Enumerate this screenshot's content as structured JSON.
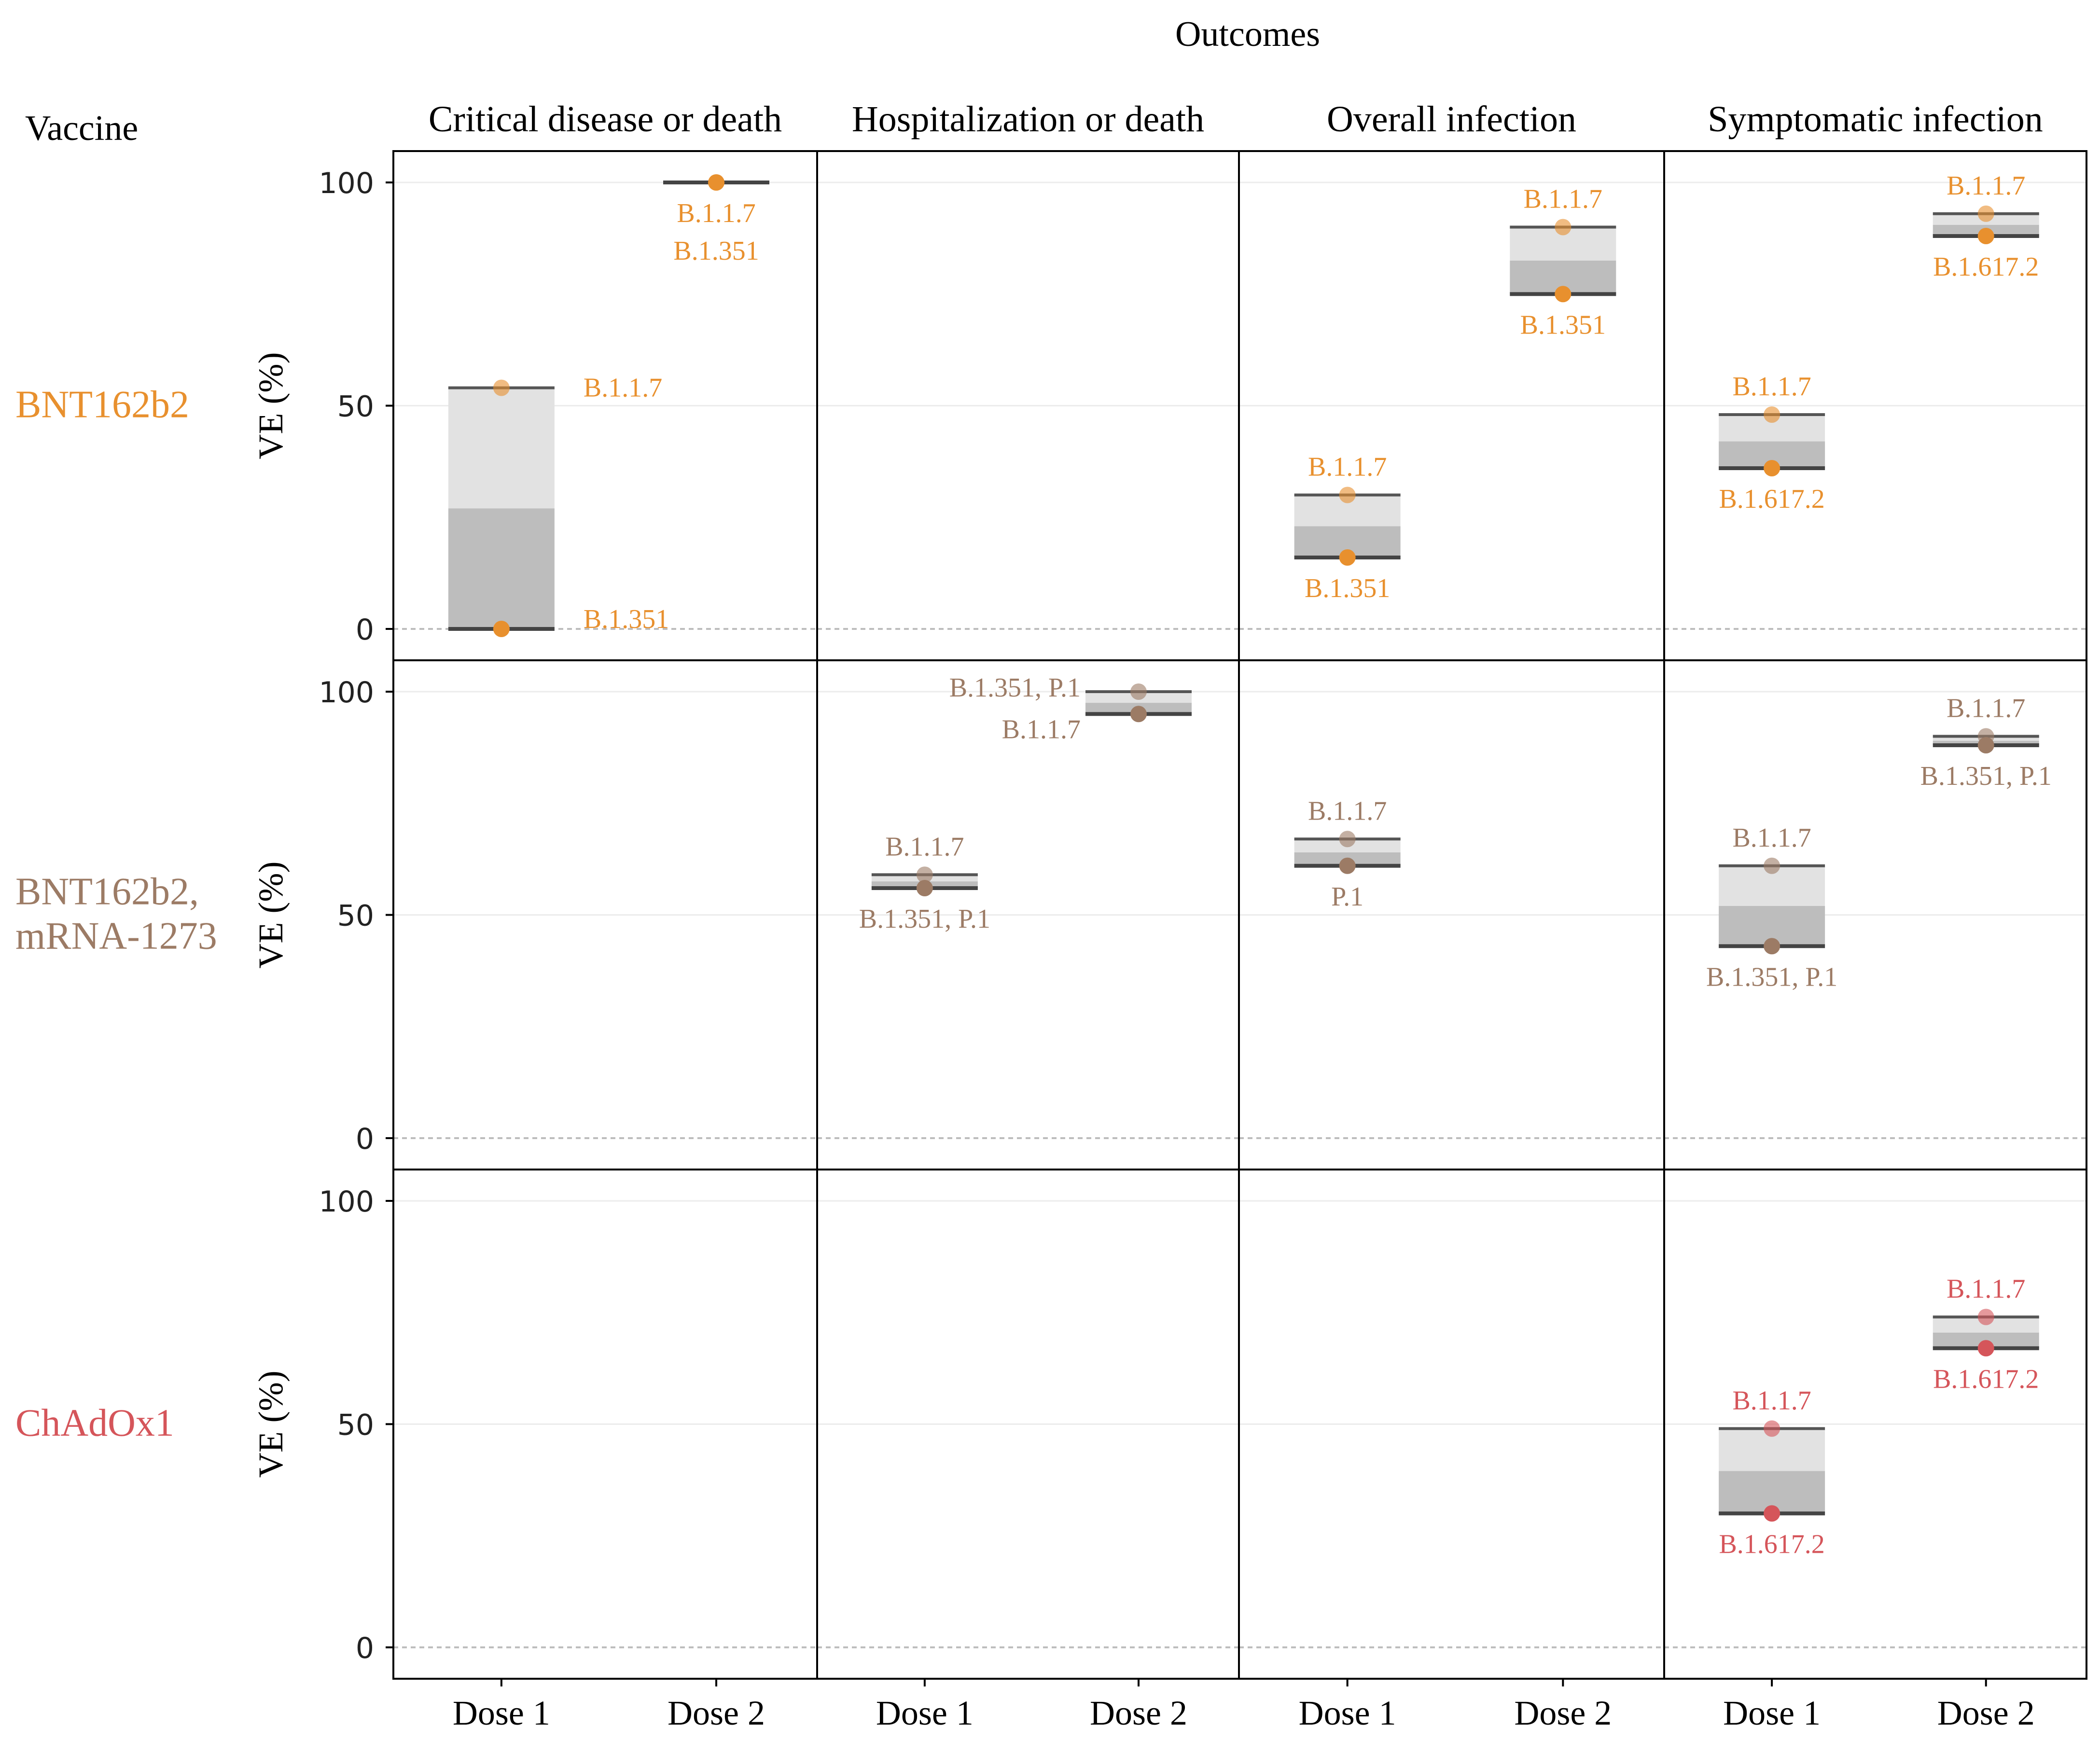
{
  "chart_data": {
    "type": "floating-bar",
    "title": "Outcomes",
    "row_header": "Vaccine",
    "ylabel": "VE (%)",
    "ylim": [
      0,
      100
    ],
    "yticks": [
      "0",
      "50",
      "100"
    ],
    "x_categories": [
      "Dose 1",
      "Dose 2"
    ],
    "outcomes": [
      "Critical disease or death",
      "Hospitalization or death",
      "Overall infection",
      "Symptomatic infection"
    ],
    "vaccines": [
      {
        "name": "BNT162b2",
        "color": "#E8902E"
      },
      {
        "name": "BNT162b2,\nmRNA-1273",
        "color": "#9C7B65"
      },
      {
        "name": "ChAdOx1",
        "color": "#D5555A"
      }
    ],
    "bars": [
      {
        "vaccine": 0,
        "outcome": 0,
        "dose": 0,
        "top": 54,
        "bottom": 0,
        "top_label": "B.1.1.7",
        "bottom_label": "B.1.351"
      },
      {
        "vaccine": 0,
        "outcome": 0,
        "dose": 1,
        "top": 100,
        "bottom": 100,
        "top_label": "B.1.1.7",
        "bottom_label": "B.1.351"
      },
      {
        "vaccine": 0,
        "outcome": 2,
        "dose": 0,
        "top": 30,
        "bottom": 16,
        "top_label": "B.1.1.7",
        "bottom_label": "B.1.351"
      },
      {
        "vaccine": 0,
        "outcome": 2,
        "dose": 1,
        "top": 90,
        "bottom": 75,
        "top_label": "B.1.1.7",
        "bottom_label": "B.1.351"
      },
      {
        "vaccine": 0,
        "outcome": 3,
        "dose": 0,
        "top": 48,
        "bottom": 36,
        "top_label": "B.1.1.7",
        "bottom_label": "B.1.617.2"
      },
      {
        "vaccine": 0,
        "outcome": 3,
        "dose": 1,
        "top": 93,
        "bottom": 88,
        "top_label": "B.1.1.7",
        "bottom_label": "B.1.617.2"
      },
      {
        "vaccine": 1,
        "outcome": 1,
        "dose": 0,
        "top": 59,
        "bottom": 56,
        "top_label": "B.1.1.7",
        "bottom_label": "B.1.351, P.1"
      },
      {
        "vaccine": 1,
        "outcome": 1,
        "dose": 1,
        "top": 100,
        "bottom": 95,
        "top_label": "B.1.351, P.1",
        "bottom_label": "B.1.1.7"
      },
      {
        "vaccine": 1,
        "outcome": 2,
        "dose": 0,
        "top": 67,
        "bottom": 61,
        "top_label": "B.1.1.7",
        "bottom_label": "P.1"
      },
      {
        "vaccine": 1,
        "outcome": 3,
        "dose": 0,
        "top": 61,
        "bottom": 43,
        "top_label": "B.1.1.7",
        "bottom_label": "B.1.351, P.1"
      },
      {
        "vaccine": 1,
        "outcome": 3,
        "dose": 1,
        "top": 90,
        "bottom": 88,
        "top_label": "B.1.1.7",
        "bottom_label": "B.1.351, P.1"
      },
      {
        "vaccine": 2,
        "outcome": 3,
        "dose": 0,
        "top": 49,
        "bottom": 30,
        "top_label": "B.1.1.7",
        "bottom_label": "B.1.617.2"
      },
      {
        "vaccine": 2,
        "outcome": 3,
        "dose": 1,
        "top": 74,
        "bottom": 67,
        "top_label": "B.1.1.7",
        "bottom_label": "B.1.617.2"
      }
    ]
  }
}
